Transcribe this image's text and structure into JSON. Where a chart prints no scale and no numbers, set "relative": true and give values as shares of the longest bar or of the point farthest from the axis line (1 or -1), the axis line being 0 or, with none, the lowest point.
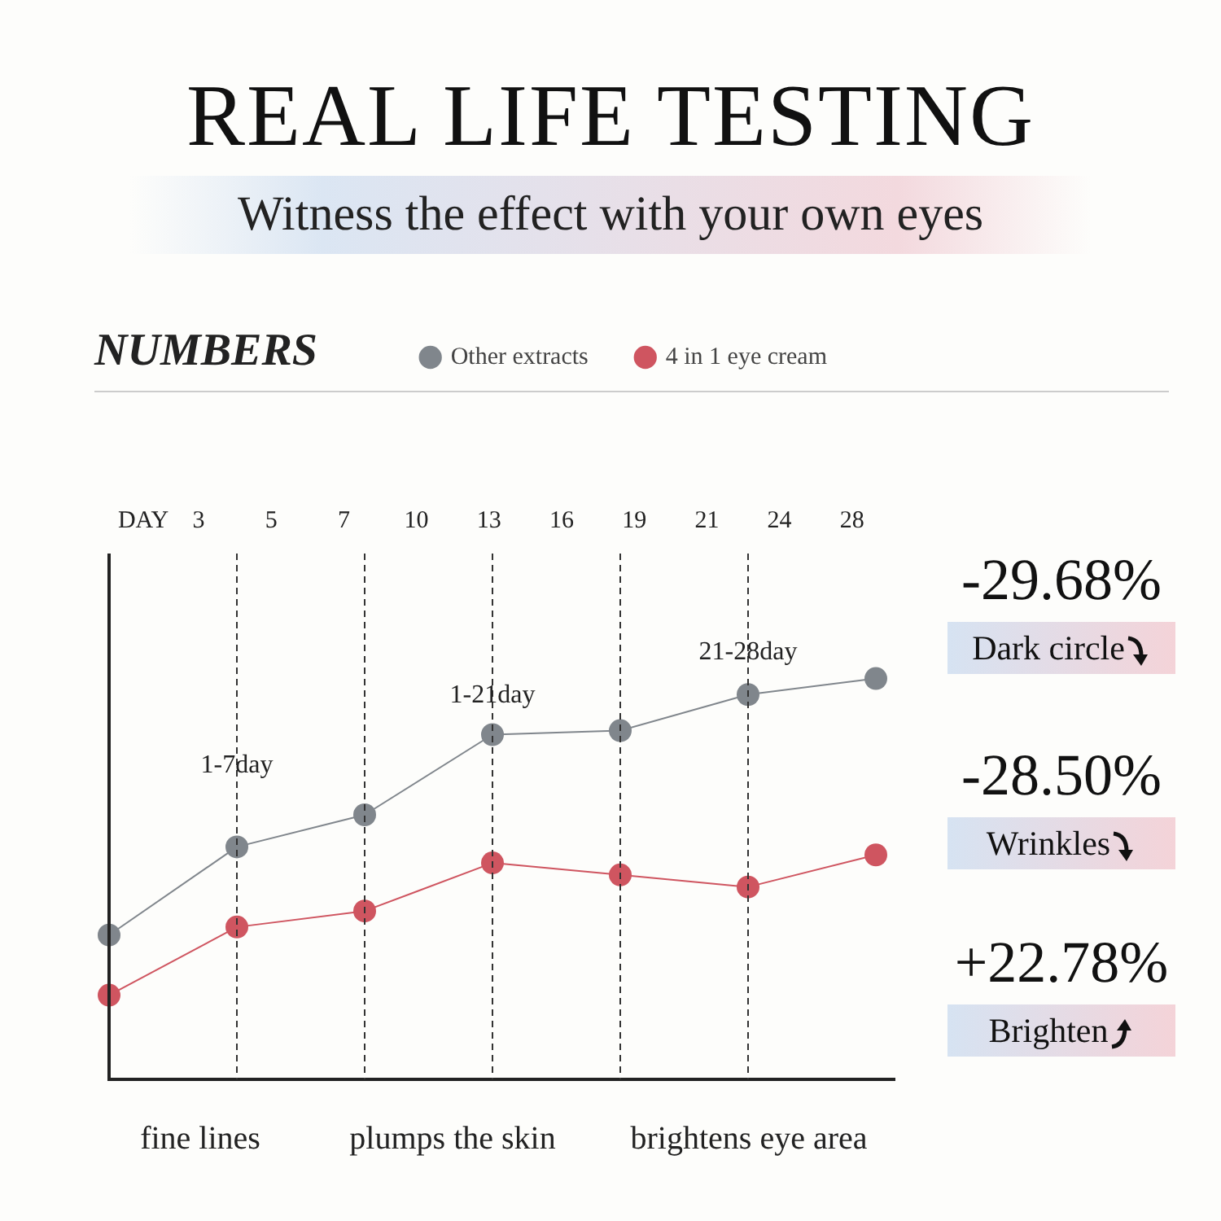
{
  "chart_data": {
    "type": "line",
    "title": "REAL LIFE TESTING",
    "subtitle": "Witness the effect with your own eyes",
    "relative": true,
    "categories": [
      null,
      null,
      null,
      null,
      null,
      null,
      null
    ],
    "series": [
      {
        "name": "Other extracts",
        "color": "#80868c",
        "values": [
          0.36,
          0.58,
          0.66,
          0.86,
          0.87,
          0.96,
          1
        ]
      },
      {
        "name": "4 in 1 eye cream",
        "color": "#cf5560",
        "values": [
          0.21,
          0.38,
          0.42,
          0.54,
          0.51,
          0.48,
          0.56
        ]
      }
    ],
    "marker": "circle",
    "line_style": "solid",
    "legend": "top right",
    "grid": "x",
    "annotations": [
      "NUMBERS",
      "DAY",
      "3",
      "5",
      "7",
      "10",
      "13",
      "16",
      "19",
      "21",
      "24",
      "28",
      "1-7day",
      "1-21day",
      "21-28day",
      "fine lines",
      "plumps the skin",
      "brightens eye area",
      "-29.68%",
      "Dark circle",
      "-28.50%",
      "Wrinkles",
      "+22.78%",
      "Brighten"
    ]
  }
}
